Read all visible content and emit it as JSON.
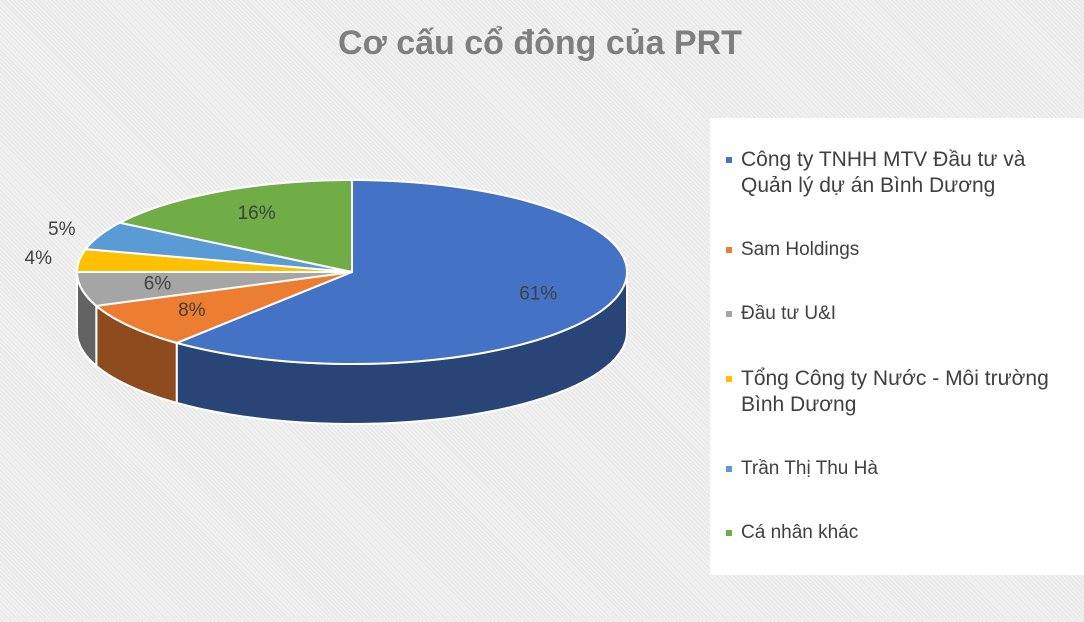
{
  "chart_data": {
    "type": "pie",
    "title": "Cơ cấu cổ đông của PRT",
    "categories": [
      "Công ty TNHH MTV Đầu tư và Quản lý dự án Bình Dương",
      "Sam Holdings",
      "Đầu tư U&I",
      "Tổng Công ty Nước - Môi trường Bình Dương",
      "Trần Thị Thu Hà",
      "Cá nhân khác"
    ],
    "values": [
      61,
      8,
      6,
      4,
      5,
      16
    ],
    "value_labels": [
      "61%",
      "8%",
      "6%",
      "4%",
      "5%",
      "16%"
    ],
    "colors": [
      "#4472c4",
      "#ed7d31",
      "#a5a5a5",
      "#ffc000",
      "#5b9bd5",
      "#70ad47"
    ],
    "legend": "right"
  }
}
